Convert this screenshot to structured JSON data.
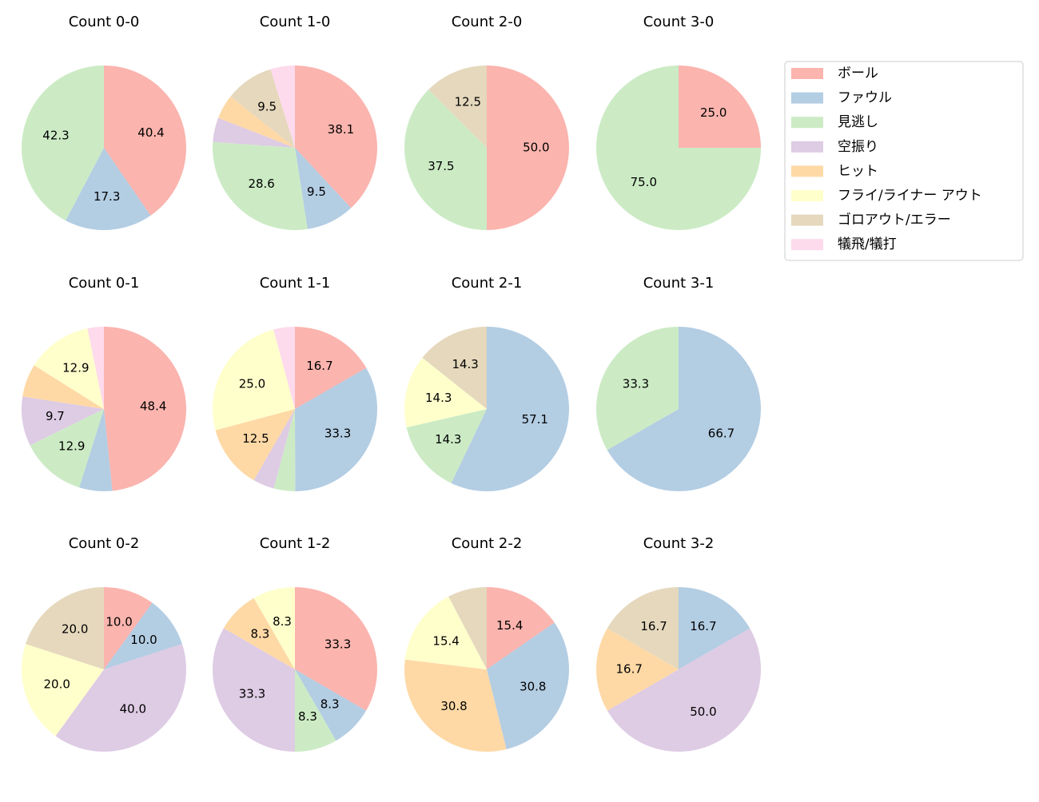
{
  "chart_data": [
    {
      "type": "pie",
      "title": "Count 0-0",
      "categories": [
        "ボール",
        "ファウル",
        "見逃し",
        "空振り",
        "ヒット",
        "フライ/ライナー アウト",
        "ゴロアウト/エラー",
        "犠飛/犠打"
      ],
      "colors": [
        "#fbb4ae",
        "#b3cde3",
        "#ccebc5",
        "#decbe4",
        "#fed9a6",
        "#ffffcc",
        "#e5d8bd",
        "#fddaec"
      ],
      "values": [
        40.4,
        17.3,
        42.3,
        0,
        0,
        0,
        0,
        0
      ],
      "value_labels": [
        "40.4",
        "17.3",
        "42.3",
        null,
        null,
        null,
        null,
        null
      ]
    },
    {
      "type": "pie",
      "title": "Count 1-0",
      "categories": [
        "ボール",
        "ファウル",
        "見逃し",
        "空振り",
        "ヒット",
        "フライ/ライナー アウト",
        "ゴロアウト/エラー",
        "犠飛/犠打"
      ],
      "colors": [
        "#fbb4ae",
        "#b3cde3",
        "#ccebc5",
        "#decbe4",
        "#fed9a6",
        "#ffffcc",
        "#e5d8bd",
        "#fddaec"
      ],
      "values": [
        38.1,
        9.5,
        28.6,
        4.8,
        4.8,
        0,
        9.5,
        4.8
      ],
      "value_labels": [
        "38.1",
        "9.5",
        "28.6",
        null,
        null,
        null,
        "9.5",
        null
      ]
    },
    {
      "type": "pie",
      "title": "Count 2-0",
      "categories": [
        "ボール",
        "ファウル",
        "見逃し",
        "空振り",
        "ヒット",
        "フライ/ライナー アウト",
        "ゴロアウト/エラー",
        "犠飛/犠打"
      ],
      "colors": [
        "#fbb4ae",
        "#b3cde3",
        "#ccebc5",
        "#decbe4",
        "#fed9a6",
        "#ffffcc",
        "#e5d8bd",
        "#fddaec"
      ],
      "values": [
        50.0,
        0,
        37.5,
        0,
        0,
        0,
        12.5,
        0
      ],
      "value_labels": [
        "50.0",
        null,
        "37.5",
        null,
        null,
        null,
        "12.5",
        null
      ]
    },
    {
      "type": "pie",
      "title": "Count 3-0",
      "categories": [
        "ボール",
        "ファウル",
        "見逃し",
        "空振り",
        "ヒット",
        "フライ/ライナー アウト",
        "ゴロアウト/エラー",
        "犠飛/犠打"
      ],
      "colors": [
        "#fbb4ae",
        "#b3cde3",
        "#ccebc5",
        "#decbe4",
        "#fed9a6",
        "#ffffcc",
        "#e5d8bd",
        "#fddaec"
      ],
      "values": [
        25.0,
        0,
        75.0,
        0,
        0,
        0,
        0,
        0
      ],
      "value_labels": [
        "25.0",
        null,
        "75.0",
        null,
        null,
        null,
        null,
        null
      ]
    },
    {
      "type": "pie",
      "title": "Count 0-1",
      "categories": [
        "ボール",
        "ファウル",
        "見逃し",
        "空振り",
        "ヒット",
        "フライ/ライナー アウト",
        "ゴロアウト/エラー",
        "犠飛/犠打"
      ],
      "colors": [
        "#fbb4ae",
        "#b3cde3",
        "#ccebc5",
        "#decbe4",
        "#fed9a6",
        "#ffffcc",
        "#e5d8bd",
        "#fddaec"
      ],
      "values": [
        48.4,
        6.5,
        12.9,
        9.7,
        6.5,
        12.9,
        0,
        3.2
      ],
      "value_labels": [
        "48.4",
        null,
        "12.9",
        "9.7",
        null,
        "12.9",
        null,
        null
      ]
    },
    {
      "type": "pie",
      "title": "Count 1-1",
      "categories": [
        "ボール",
        "ファウル",
        "見逃し",
        "空振り",
        "ヒット",
        "フライ/ライナー アウト",
        "ゴロアウト/エラー",
        "犠飛/犠打"
      ],
      "colors": [
        "#fbb4ae",
        "#b3cde3",
        "#ccebc5",
        "#decbe4",
        "#fed9a6",
        "#ffffcc",
        "#e5d8bd",
        "#fddaec"
      ],
      "values": [
        16.7,
        33.3,
        4.2,
        4.2,
        12.5,
        25.0,
        0,
        4.2
      ],
      "value_labels": [
        "16.7",
        "33.3",
        null,
        null,
        "12.5",
        "25.0",
        null,
        null
      ]
    },
    {
      "type": "pie",
      "title": "Count 2-1",
      "categories": [
        "ボール",
        "ファウル",
        "見逃し",
        "空振り",
        "ヒット",
        "フライ/ライナー アウト",
        "ゴロアウト/エラー",
        "犠飛/犠打"
      ],
      "colors": [
        "#fbb4ae",
        "#b3cde3",
        "#ccebc5",
        "#decbe4",
        "#fed9a6",
        "#ffffcc",
        "#e5d8bd",
        "#fddaec"
      ],
      "values": [
        0,
        57.1,
        14.3,
        0,
        0,
        14.3,
        14.3,
        0
      ],
      "value_labels": [
        null,
        "57.1",
        "14.3",
        null,
        null,
        "14.3",
        "14.3",
        null
      ]
    },
    {
      "type": "pie",
      "title": "Count 3-1",
      "categories": [
        "ボール",
        "ファウル",
        "見逃し",
        "空振り",
        "ヒット",
        "フライ/ライナー アウト",
        "ゴロアウト/エラー",
        "犠飛/犠打"
      ],
      "colors": [
        "#fbb4ae",
        "#b3cde3",
        "#ccebc5",
        "#decbe4",
        "#fed9a6",
        "#ffffcc",
        "#e5d8bd",
        "#fddaec"
      ],
      "values": [
        0,
        66.7,
        33.3,
        0,
        0,
        0,
        0,
        0
      ],
      "value_labels": [
        null,
        "66.7",
        "33.3",
        null,
        null,
        null,
        null,
        null
      ]
    },
    {
      "type": "pie",
      "title": "Count 0-2",
      "categories": [
        "ボール",
        "ファウル",
        "見逃し",
        "空振り",
        "ヒット",
        "フライ/ライナー アウト",
        "ゴロアウト/エラー",
        "犠飛/犠打"
      ],
      "colors": [
        "#fbb4ae",
        "#b3cde3",
        "#ccebc5",
        "#decbe4",
        "#fed9a6",
        "#ffffcc",
        "#e5d8bd",
        "#fddaec"
      ],
      "values": [
        10.0,
        10.0,
        0,
        40.0,
        0,
        20.0,
        20.0,
        0
      ],
      "value_labels": [
        "10.0",
        "10.0",
        null,
        "40.0",
        null,
        "20.0",
        "20.0",
        null
      ]
    },
    {
      "type": "pie",
      "title": "Count 1-2",
      "categories": [
        "ボール",
        "ファウル",
        "見逃し",
        "空振り",
        "ヒット",
        "フライ/ライナー アウト",
        "ゴロアウト/エラー",
        "犠飛/犠打"
      ],
      "colors": [
        "#fbb4ae",
        "#b3cde3",
        "#ccebc5",
        "#decbe4",
        "#fed9a6",
        "#ffffcc",
        "#e5d8bd",
        "#fddaec"
      ],
      "values": [
        33.3,
        8.3,
        8.3,
        33.3,
        8.3,
        8.3,
        0,
        0
      ],
      "value_labels": [
        "33.3",
        "8.3",
        "8.3",
        "33.3",
        "8.3",
        "8.3",
        null,
        null
      ]
    },
    {
      "type": "pie",
      "title": "Count 2-2",
      "categories": [
        "ボール",
        "ファウル",
        "見逃し",
        "空振り",
        "ヒット",
        "フライ/ライナー アウト",
        "ゴロアウト/エラー",
        "犠飛/犠打"
      ],
      "colors": [
        "#fbb4ae",
        "#b3cde3",
        "#ccebc5",
        "#decbe4",
        "#fed9a6",
        "#ffffcc",
        "#e5d8bd",
        "#fddaec"
      ],
      "values": [
        15.4,
        30.8,
        0,
        0,
        30.8,
        15.4,
        7.7,
        0
      ],
      "value_labels": [
        "15.4",
        "30.8",
        null,
        null,
        "30.8",
        "15.4",
        null,
        null
      ]
    },
    {
      "type": "pie",
      "title": "Count 3-2",
      "categories": [
        "ボール",
        "ファウル",
        "見逃し",
        "空振り",
        "ヒット",
        "フライ/ライナー アウト",
        "ゴロアウト/エラー",
        "犠飛/犠打"
      ],
      "colors": [
        "#fbb4ae",
        "#b3cde3",
        "#ccebc5",
        "#decbe4",
        "#fed9a6",
        "#ffffcc",
        "#e5d8bd",
        "#fddaec"
      ],
      "values": [
        0,
        16.7,
        0,
        50.0,
        16.7,
        0,
        16.7,
        0
      ],
      "value_labels": [
        null,
        "16.7",
        null,
        "50.0",
        "16.7",
        null,
        "16.7",
        null
      ]
    }
  ]
}
